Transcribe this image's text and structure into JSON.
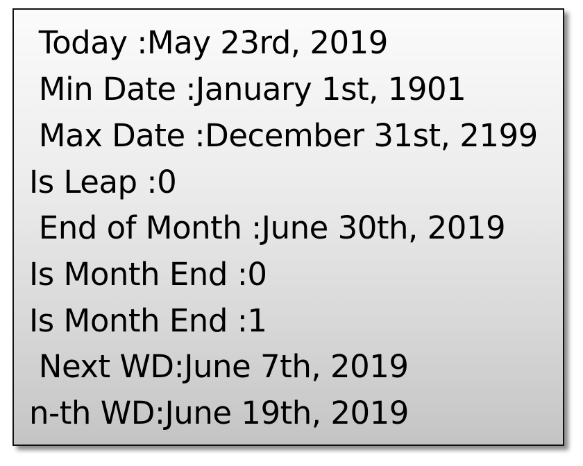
{
  "lines": [
    " Today :May 23rd, 2019",
    " Min Date :January 1st, 1901",
    " Max Date :December 31st, 2199",
    "Is Leap :0",
    " End of Month :June 30th, 2019",
    "Is Month End :0",
    "Is Month End :1",
    " Next WD:June 7th, 2019",
    "n-th WD:June 19th, 2019"
  ]
}
